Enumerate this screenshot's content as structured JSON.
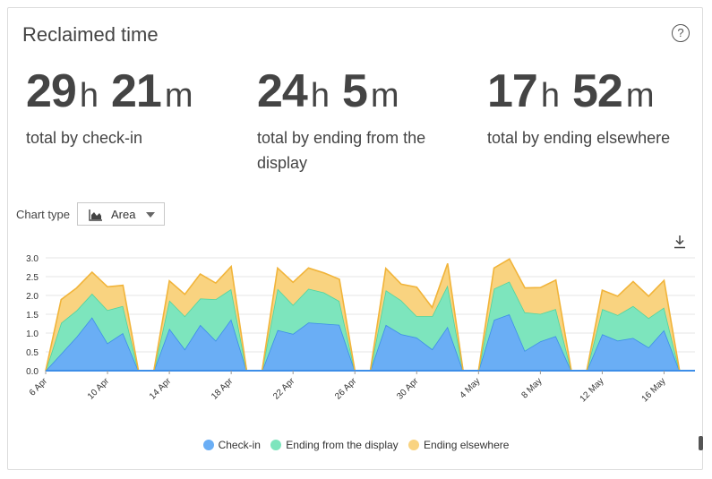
{
  "card": {
    "title": "Reclaimed time",
    "help_icon": "question-circle-icon"
  },
  "stats": [
    {
      "hours": "29",
      "h_unit": "h",
      "minutes": "21",
      "m_unit": "m",
      "desc": "total by check-in"
    },
    {
      "hours": "24",
      "h_unit": "h",
      "minutes": "5",
      "m_unit": "m",
      "desc": "total by ending from the display"
    },
    {
      "hours": "17",
      "h_unit": "h",
      "minutes": "52",
      "m_unit": "m",
      "desc": "total by ending elsewhere"
    }
  ],
  "chart_type": {
    "label": "Chart type",
    "selected": "Area",
    "icon": "area-chart-icon"
  },
  "download_icon": "download-icon",
  "chart_data": {
    "type": "area",
    "stacked": true,
    "ylim": [
      0,
      3.0
    ],
    "yticks": [
      "0.0",
      "0.5",
      "1.0",
      "1.5",
      "2.0",
      "2.5",
      "3.0"
    ],
    "xticks": [
      {
        "label": "6 Apr",
        "index": 0
      },
      {
        "label": "10 Apr",
        "index": 4
      },
      {
        "label": "14 Apr",
        "index": 8
      },
      {
        "label": "18 Apr",
        "index": 12
      },
      {
        "label": "22 Apr",
        "index": 16
      },
      {
        "label": "26 Apr",
        "index": 20
      },
      {
        "label": "30 Apr",
        "index": 24
      },
      {
        "label": "4 May",
        "index": 28
      },
      {
        "label": "8 May",
        "index": 32
      },
      {
        "label": "12 May",
        "index": 36
      },
      {
        "label": "16 May",
        "index": 40
      }
    ],
    "series": [
      {
        "name": "Check-in",
        "color": "#6aaef5",
        "line": "#3d8ee8",
        "values": [
          0,
          0.45,
          0.9,
          1.42,
          0.73,
          1.0,
          0,
          0,
          1.12,
          0.57,
          1.22,
          0.8,
          1.37,
          0,
          0,
          1.08,
          0.98,
          1.28,
          1.25,
          1.22,
          0,
          0,
          1.22,
          0.97,
          0.88,
          0.57,
          1.17,
          0,
          0,
          1.35,
          1.5,
          0.53,
          0.78,
          0.92,
          0,
          0,
          0.97,
          0.8,
          0.87,
          0.62,
          1.08,
          0,
          0
        ]
      },
      {
        "name": "Ending from the display",
        "color": "#7de5bd",
        "line": "#4fd49f",
        "values": [
          0,
          0.82,
          0.7,
          0.63,
          0.88,
          0.72,
          0,
          0,
          0.75,
          0.88,
          0.7,
          1.1,
          0.8,
          0,
          0,
          1.1,
          0.77,
          0.9,
          0.83,
          0.63,
          0,
          0,
          0.92,
          0.9,
          0.57,
          0.88,
          1.1,
          0,
          0,
          0.83,
          0.87,
          1.02,
          0.73,
          0.72,
          0,
          0,
          0.67,
          0.68,
          0.85,
          0.78,
          0.6,
          0,
          0
        ]
      },
      {
        "name": "Ending elsewhere",
        "color": "#f9d380",
        "line": "#f1b43a",
        "values": [
          0,
          0.62,
          0.6,
          0.57,
          0.62,
          0.55,
          0,
          0,
          0.52,
          0.58,
          0.65,
          0.43,
          0.6,
          0,
          0,
          0.55,
          0.6,
          0.55,
          0.52,
          0.58,
          0,
          0,
          0.58,
          0.43,
          0.77,
          0.23,
          0.58,
          0,
          0,
          0.55,
          0.6,
          0.65,
          0.7,
          0.77,
          0,
          0,
          0.5,
          0.5,
          0.65,
          0.58,
          0.72,
          0,
          0
        ]
      }
    ],
    "legend_position": "bottom",
    "grid": true
  },
  "legend": [
    {
      "label": "Check-in",
      "color": "#6aaef5"
    },
    {
      "label": "Ending from the display",
      "color": "#7de5bd"
    },
    {
      "label": "Ending elsewhere",
      "color": "#f9d380"
    }
  ]
}
